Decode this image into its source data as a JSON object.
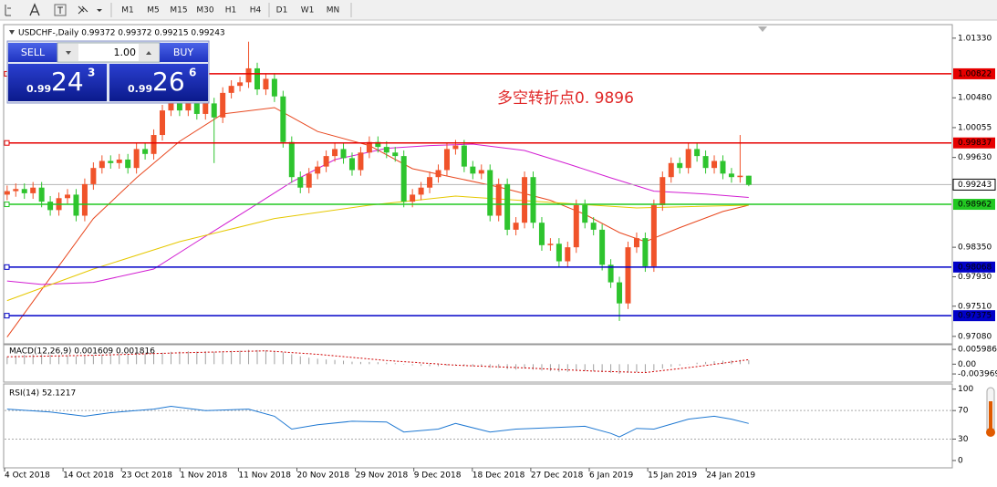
{
  "toolbar": {
    "timeframes": [
      "M1",
      "M5",
      "M15",
      "M30",
      "H1",
      "H4",
      "D1",
      "W1",
      "MN"
    ]
  },
  "trade_panel": {
    "sell": "SELL",
    "buy": "BUY",
    "lots": "1.00",
    "bid": {
      "big": "0.99",
      "main": "24",
      "sup": "3"
    },
    "ask": {
      "big": "0.99",
      "main": "26",
      "sup": "6"
    }
  },
  "chart_data": {
    "type": "candlestick",
    "title": "USDCHF-,Daily  0.99372 0.99372 0.99215 0.99243",
    "annotation": "多空转折点0. 9896",
    "up_color": "#f0532a",
    "down_color": "#2ec42e",
    "open": [
      0.991,
      0.9915,
      0.9918,
      0.9912,
      0.992,
      0.99,
      0.9888,
      0.9905,
      0.991,
      0.988,
      0.9925,
      0.9948,
      0.9958,
      0.9955,
      0.996,
      0.9948,
      0.9975,
      0.9968,
      0.9995,
      1.003,
      1.0045,
      1.003,
      1.004,
      1.0025,
      1.004,
      1.002,
      1.0055,
      1.0065,
      1.007,
      1.009,
      1.006,
      1.0075,
      1.005,
      0.9985,
      0.9935,
      0.992,
      0.994,
      0.995,
      0.9965,
      0.9975,
      0.9962,
      0.9945,
      0.997,
      0.9985,
      0.9978,
      0.997,
      0.9965,
      0.99,
      0.991,
      0.992,
      0.9935,
      0.9945,
      0.9975,
      0.998,
      0.995,
      0.994,
      0.9945,
      0.988,
      0.9925,
      0.986,
      0.987,
      0.9935,
      0.987,
      0.9838,
      0.984,
      0.9815,
      0.9835,
      0.9895,
      0.987,
      0.986,
      0.981,
      0.9785,
      0.9755,
      0.9835,
      0.9848,
      0.9808,
      0.9895,
      0.9935,
      0.9955,
      0.9948,
      0.9975,
      0.9965,
      0.9948,
      0.9958,
      0.994,
      0.9935,
      0.9937
    ],
    "high": [
      0.9923,
      0.9926,
      0.9926,
      0.9928,
      0.9928,
      0.9908,
      0.9913,
      0.9918,
      0.9918,
      0.9933,
      0.9956,
      0.9966,
      0.9966,
      0.9968,
      0.9968,
      0.9983,
      0.9983,
      1.0003,
      1.0038,
      1.0053,
      1.0053,
      1.0048,
      1.0048,
      1.0048,
      1.0048,
      1.0063,
      1.0073,
      1.0078,
      1.0128,
      1.0098,
      1.0083,
      1.0083,
      1.0058,
      0.9993,
      0.9943,
      0.9948,
      0.9958,
      0.9973,
      0.9983,
      0.9983,
      0.997,
      0.9978,
      0.9993,
      0.9993,
      0.9986,
      0.9978,
      0.9973,
      0.9918,
      0.9928,
      0.9943,
      0.9953,
      0.9983,
      0.9988,
      0.9988,
      0.9958,
      0.9953,
      0.9953,
      0.9933,
      0.9933,
      0.9878,
      0.9943,
      0.9943,
      0.9878,
      0.9848,
      0.9848,
      0.9843,
      0.9903,
      0.9903,
      0.9878,
      0.9868,
      0.9818,
      0.9793,
      0.9843,
      0.9856,
      0.9856,
      0.9903,
      0.9943,
      0.9963,
      0.9963,
      0.9983,
      0.9983,
      0.9973,
      0.9966,
      0.9966,
      0.9948,
      0.9995,
      0.9937
    ],
    "low": [
      0.9902,
      0.9907,
      0.9904,
      0.9904,
      0.9892,
      0.988,
      0.988,
      0.9897,
      0.9872,
      0.9872,
      0.9917,
      0.994,
      0.9947,
      0.9947,
      0.994,
      0.994,
      0.996,
      0.996,
      0.9987,
      1.0022,
      1.0022,
      1.0022,
      1.0017,
      1.0017,
      0.9955,
      1.0012,
      1.0047,
      1.0057,
      1.0062,
      1.0052,
      1.0052,
      1.0042,
      0.9977,
      0.9927,
      0.9912,
      0.9912,
      0.9932,
      0.9942,
      0.9957,
      0.9954,
      0.9937,
      0.9937,
      0.9962,
      0.997,
      0.9962,
      0.9957,
      0.9892,
      0.9892,
      0.9902,
      0.9912,
      0.9927,
      0.9937,
      0.9967,
      0.9942,
      0.9932,
      0.9932,
      0.9872,
      0.9872,
      0.9852,
      0.9852,
      0.9862,
      0.9862,
      0.983,
      0.983,
      0.9807,
      0.9807,
      0.9827,
      0.9862,
      0.9852,
      0.9802,
      0.9777,
      0.973,
      0.9747,
      0.9827,
      0.98,
      0.98,
      0.9887,
      0.9927,
      0.994,
      0.994,
      0.9957,
      0.994,
      0.994,
      0.9932,
      0.9927,
      0.9927,
      0.9922
    ],
    "close": [
      0.9915,
      0.9918,
      0.9912,
      0.992,
      0.99,
      0.9888,
      0.9905,
      0.991,
      0.988,
      0.9925,
      0.9948,
      0.9958,
      0.9955,
      0.996,
      0.9948,
      0.9975,
      0.9968,
      0.9995,
      1.003,
      1.0045,
      1.003,
      1.004,
      1.0025,
      1.004,
      1.002,
      1.0055,
      1.0065,
      1.007,
      1.009,
      1.006,
      1.0075,
      1.005,
      0.9985,
      0.9935,
      0.992,
      0.994,
      0.995,
      0.9965,
      0.9975,
      0.9962,
      0.9945,
      0.997,
      0.9985,
      0.9978,
      0.997,
      0.9965,
      0.99,
      0.991,
      0.992,
      0.9935,
      0.9945,
      0.9975,
      0.998,
      0.995,
      0.994,
      0.9945,
      0.988,
      0.9925,
      0.986,
      0.987,
      0.9935,
      0.987,
      0.9838,
      0.984,
      0.9815,
      0.9835,
      0.9895,
      0.987,
      0.986,
      0.981,
      0.9785,
      0.9755,
      0.9835,
      0.9848,
      0.9808,
      0.9895,
      0.9935,
      0.9955,
      0.9948,
      0.9975,
      0.9965,
      0.9948,
      0.9958,
      0.994,
      0.9935,
      0.9937,
      0.9924
    ],
    "xlim": [
      -0.3,
      109.5
    ],
    "ylim": [
      0.97,
      1.0151
    ],
    "yticks": [
      {
        "value": 1.0133,
        "label": "1.01330"
      },
      {
        "value": 1.0048,
        "label": "1.00480"
      },
      1.00055,
      {
        "value": 0.9963,
        "label": "0.99630"
      },
      {
        "value": 0.9835,
        "label": "0.98350"
      },
      {
        "value": 0.9793,
        "label": "0.97930"
      },
      {
        "value": 0.9751,
        "label": "0.97510"
      },
      {
        "value": 0.9708,
        "label": "0.97080"
      }
    ],
    "last_price": 0.99243,
    "levels": [
      {
        "value": 1.00822,
        "color": "#e60000"
      },
      {
        "value": 0.99837,
        "color": "#e60000"
      },
      {
        "value": 0.98962,
        "color": "#22c822"
      },
      {
        "value": 0.98068,
        "color": "#0000c8"
      },
      {
        "value": 0.97375,
        "color": "#0000c8"
      }
    ],
    "moving_averages": [
      {
        "color": "#e8471e",
        "x": [
          0,
          10,
          15,
          20,
          25,
          31,
          36,
          42,
          47,
          52,
          57,
          63,
          67,
          71,
          74,
          78,
          83,
          86
        ],
        "values": [
          0.9707,
          0.9876,
          0.9934,
          0.9986,
          1.0025,
          1.0034,
          1.0,
          0.998,
          0.9947,
          0.9934,
          0.9921,
          0.9902,
          0.9882,
          0.9856,
          0.9843,
          0.9863,
          0.9886,
          0.9895
        ]
      },
      {
        "color": "#d21ed2",
        "x": [
          0,
          4,
          10,
          17,
          22,
          28,
          33,
          38,
          44,
          49,
          54,
          60,
          65,
          70,
          75,
          81,
          86
        ],
        "values": [
          0.9787,
          0.9782,
          0.9785,
          0.9804,
          0.9843,
          0.9889,
          0.9928,
          0.996,
          0.9976,
          0.998,
          0.9982,
          0.9973,
          0.9954,
          0.9934,
          0.9915,
          0.9911,
          0.9906
        ]
      },
      {
        "color": "#e6c800",
        "x": [
          0,
          10,
          20,
          31,
          42,
          52,
          63,
          73,
          86
        ],
        "values": [
          0.9759,
          0.9804,
          0.9843,
          0.9876,
          0.9895,
          0.9908,
          0.9899,
          0.9891,
          0.9895
        ]
      }
    ],
    "xtick_labels": [
      "4 Oct 2018",
      "14 Oct 2018",
      "23 Oct 2018",
      "1 Nov 2018",
      "11 Nov 2018",
      "20 Nov 2018",
      "29 Nov 2018",
      "9 Dec 2018",
      "18 Dec 2018",
      "27 Dec 2018",
      "6 Jan 2019",
      "15 Jan 2019",
      "24 Jan 2019"
    ],
    "macd": {
      "title": "MACD(12,26,9) 0.001609 0.001816",
      "ylim": [
        -0.0069,
        0.0075
      ],
      "yticks": [
        0.005986,
        {
          "value": 0,
          "label": "0.00"
        },
        -0.003969
      ],
      "hist_color": "#a0a0a0",
      "histogram": [
        0.003,
        0.0035,
        0.0038,
        0.004,
        0.004,
        0.0038,
        0.0036,
        0.0035,
        0.0032,
        0.0033,
        0.0036,
        0.0038,
        0.0039,
        0.004,
        0.0039,
        0.0041,
        0.0042,
        0.0044,
        0.0047,
        0.005,
        0.0051,
        0.0052,
        0.0051,
        0.0052,
        0.005,
        0.0052,
        0.0054,
        0.0055,
        0.0058,
        0.0057,
        0.0056,
        0.0054,
        0.0048,
        0.004,
        0.0032,
        0.0026,
        0.0022,
        0.0019,
        0.0017,
        0.0014,
        0.001,
        0.0009,
        0.0009,
        0.0008,
        0.0006,
        0.0004,
        -0.0002,
        -0.0005,
        -0.0007,
        -0.0008,
        -0.0008,
        -0.0006,
        -0.0005,
        -0.0007,
        -0.0009,
        -0.001,
        -0.0015,
        -0.0015,
        -0.002,
        -0.0022,
        -0.0018,
        -0.0022,
        -0.0026,
        -0.0028,
        -0.0031,
        -0.0031,
        -0.0027,
        -0.0028,
        -0.0029,
        -0.0032,
        -0.0035,
        -0.0039,
        -0.0035,
        -0.0032,
        -0.0033,
        -0.0026,
        -0.0018,
        -0.0011,
        -0.0006,
        0.0001,
        0.0006,
        0.0009,
        0.0012,
        0.0014,
        0.0015,
        0.0017,
        0.0016
      ],
      "signal": {
        "color": "#d00000",
        "x": [
          0,
          10,
          20,
          30,
          36,
          44,
          52,
          60,
          68,
          74,
          80,
          86
        ],
        "values": [
          0.003,
          0.0036,
          0.0046,
          0.0054,
          0.004,
          0.0015,
          -0.0004,
          -0.0015,
          -0.0028,
          -0.0034,
          -0.001,
          0.0018
        ]
      }
    },
    "rsi": {
      "title": "RSI(14) 52.1217",
      "ylim": [
        -9,
        106
      ],
      "yticks": [
        100,
        70,
        30,
        0
      ],
      "levels": [
        70,
        30
      ],
      "color": "#1e78d2",
      "x": [
        0,
        5,
        9,
        12,
        17,
        19,
        23,
        28,
        31,
        33,
        36,
        40,
        44,
        46,
        50,
        52,
        56,
        59,
        63,
        67,
        70,
        71,
        73,
        75,
        79,
        82,
        84,
        86
      ],
      "values": [
        72,
        68,
        62,
        67,
        72,
        76,
        70,
        72,
        62,
        44,
        50,
        55,
        54,
        40,
        44,
        52,
        40,
        44,
        46,
        48,
        38,
        33,
        45,
        44,
        58,
        62,
        58,
        52
      ]
    }
  }
}
